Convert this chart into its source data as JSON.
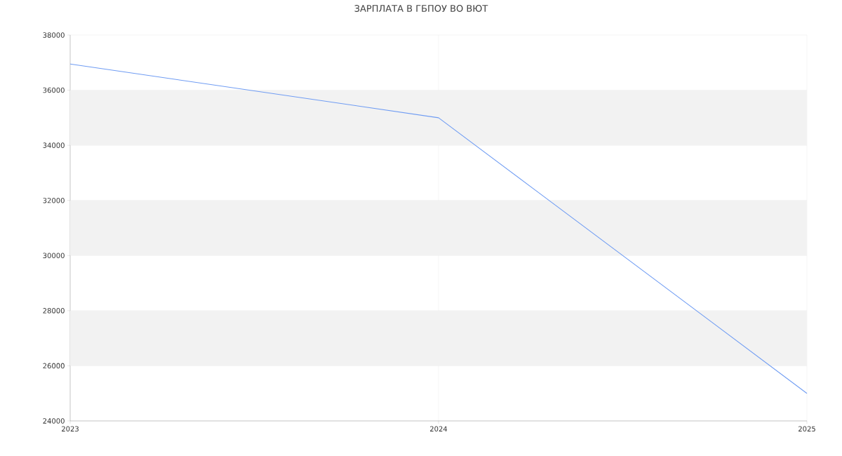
{
  "chart_data": {
    "type": "line",
    "title": "ЗАРПЛАТА В ГБПОУ ВО ВЮТ",
    "x": [
      2023,
      2024,
      2025
    ],
    "series": [
      {
        "color": "#6f9cf3",
        "values": [
          36950,
          35000,
          25000
        ]
      }
    ],
    "xlim": [
      2023,
      2025
    ],
    "xticks": [
      2023,
      2024,
      2025
    ],
    "ylim": [
      24000,
      38000
    ],
    "yticks": [
      24000,
      26000,
      28000,
      30000,
      32000,
      34000,
      36000,
      38000
    ],
    "grid": true,
    "legend": false,
    "marker": "none",
    "line_style": "solid"
  }
}
